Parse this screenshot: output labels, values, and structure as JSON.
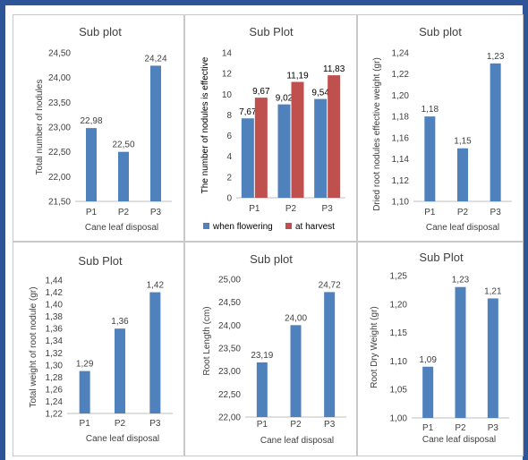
{
  "colors": {
    "bar": "#4f81bd",
    "bar2": "#c0504d",
    "axis": "#bfbfbf",
    "text": "#404040",
    "frame": "#2e5597",
    "panel_border": "#c8c8c8"
  },
  "chart_data": [
    {
      "type": "bar",
      "title": "Sub plot",
      "ylabel": "Total number of nodules",
      "xlabel": "Cane leaf disposal",
      "categories": [
        "P1",
        "P2",
        "P3"
      ],
      "values": [
        22.98,
        22.5,
        24.24
      ],
      "data_labels": [
        "22,98",
        "22,50",
        "24,24"
      ],
      "ylim": [
        21.5,
        24.5
      ],
      "yticks": [
        "21,50",
        "22,00",
        "22,50",
        "23,00",
        "23,50",
        "24,00",
        "24,50"
      ]
    },
    {
      "type": "bar",
      "title": "Sub Plot",
      "ylabel": "The number of nodules is effective",
      "xlabel": "",
      "categories": [
        "P1",
        "P2",
        "P3"
      ],
      "series": [
        {
          "name": "when flowering",
          "values": [
            7.67,
            9.02,
            9.54
          ],
          "data_labels": [
            "7,67",
            "9,02",
            "9,54"
          ]
        },
        {
          "name": "at harvest",
          "values": [
            9.67,
            11.19,
            11.83
          ],
          "data_labels": [
            "9,67",
            "11,19",
            "11,83"
          ]
        }
      ],
      "ylim": [
        0,
        14
      ],
      "yticks": [
        "0",
        "2",
        "4",
        "6",
        "8",
        "10",
        "12",
        "14"
      ],
      "legend": "bottom"
    },
    {
      "type": "bar",
      "title": "Sub plot",
      "ylabel": "Dried root nodules effective weight (gr)",
      "xlabel": "Cane leaf disposal",
      "categories": [
        "P1",
        "P2",
        "P3"
      ],
      "values": [
        1.18,
        1.15,
        1.23
      ],
      "data_labels": [
        "1,18",
        "1,15",
        "1,23"
      ],
      "ylim": [
        1.1,
        1.24
      ],
      "yticks": [
        "1,10",
        "1,12",
        "1,14",
        "1,16",
        "1,18",
        "1,20",
        "1,22",
        "1,24"
      ]
    },
    {
      "type": "bar",
      "title": "Sub Plot",
      "ylabel": "Total weight of root nodule (gr)",
      "xlabel": "Cane leaf disposal",
      "categories": [
        "P1",
        "P2",
        "P3"
      ],
      "values": [
        1.29,
        1.36,
        1.42
      ],
      "data_labels": [
        "1,29",
        "1,36",
        "1,42"
      ],
      "ylim": [
        1.22,
        1.44
      ],
      "yticks": [
        "1,22",
        "1,24",
        "1,26",
        "1,28",
        "1,30",
        "1,32",
        "1,34",
        "1,36",
        "1,38",
        "1,40",
        "1,42",
        "1,44"
      ]
    },
    {
      "type": "bar",
      "title": "Sub plot",
      "ylabel": "Root Length (cm)",
      "xlabel": "Cane leaf disposal",
      "categories": [
        "P1",
        "P2",
        "P3"
      ],
      "values": [
        23.19,
        24.0,
        24.72
      ],
      "data_labels": [
        "23,19",
        "24,00",
        "24,72"
      ],
      "ylim": [
        22.0,
        25.0
      ],
      "yticks": [
        "22,00",
        "22,50",
        "23,00",
        "23,50",
        "24,00",
        "24,50",
        "25,00"
      ]
    },
    {
      "type": "bar",
      "title": "Sub Plot",
      "ylabel": "Root Dry Weight (gr)",
      "xlabel": "Cane leaf disposal",
      "categories": [
        "P1",
        "P2",
        "P3"
      ],
      "values": [
        1.09,
        1.23,
        1.21
      ],
      "data_labels": [
        "1,09",
        "1,23",
        "1,21"
      ],
      "ylim": [
        1.0,
        1.25
      ],
      "yticks": [
        "1,00",
        "1,05",
        "1,10",
        "1,15",
        "1,20",
        "1,25"
      ]
    }
  ]
}
